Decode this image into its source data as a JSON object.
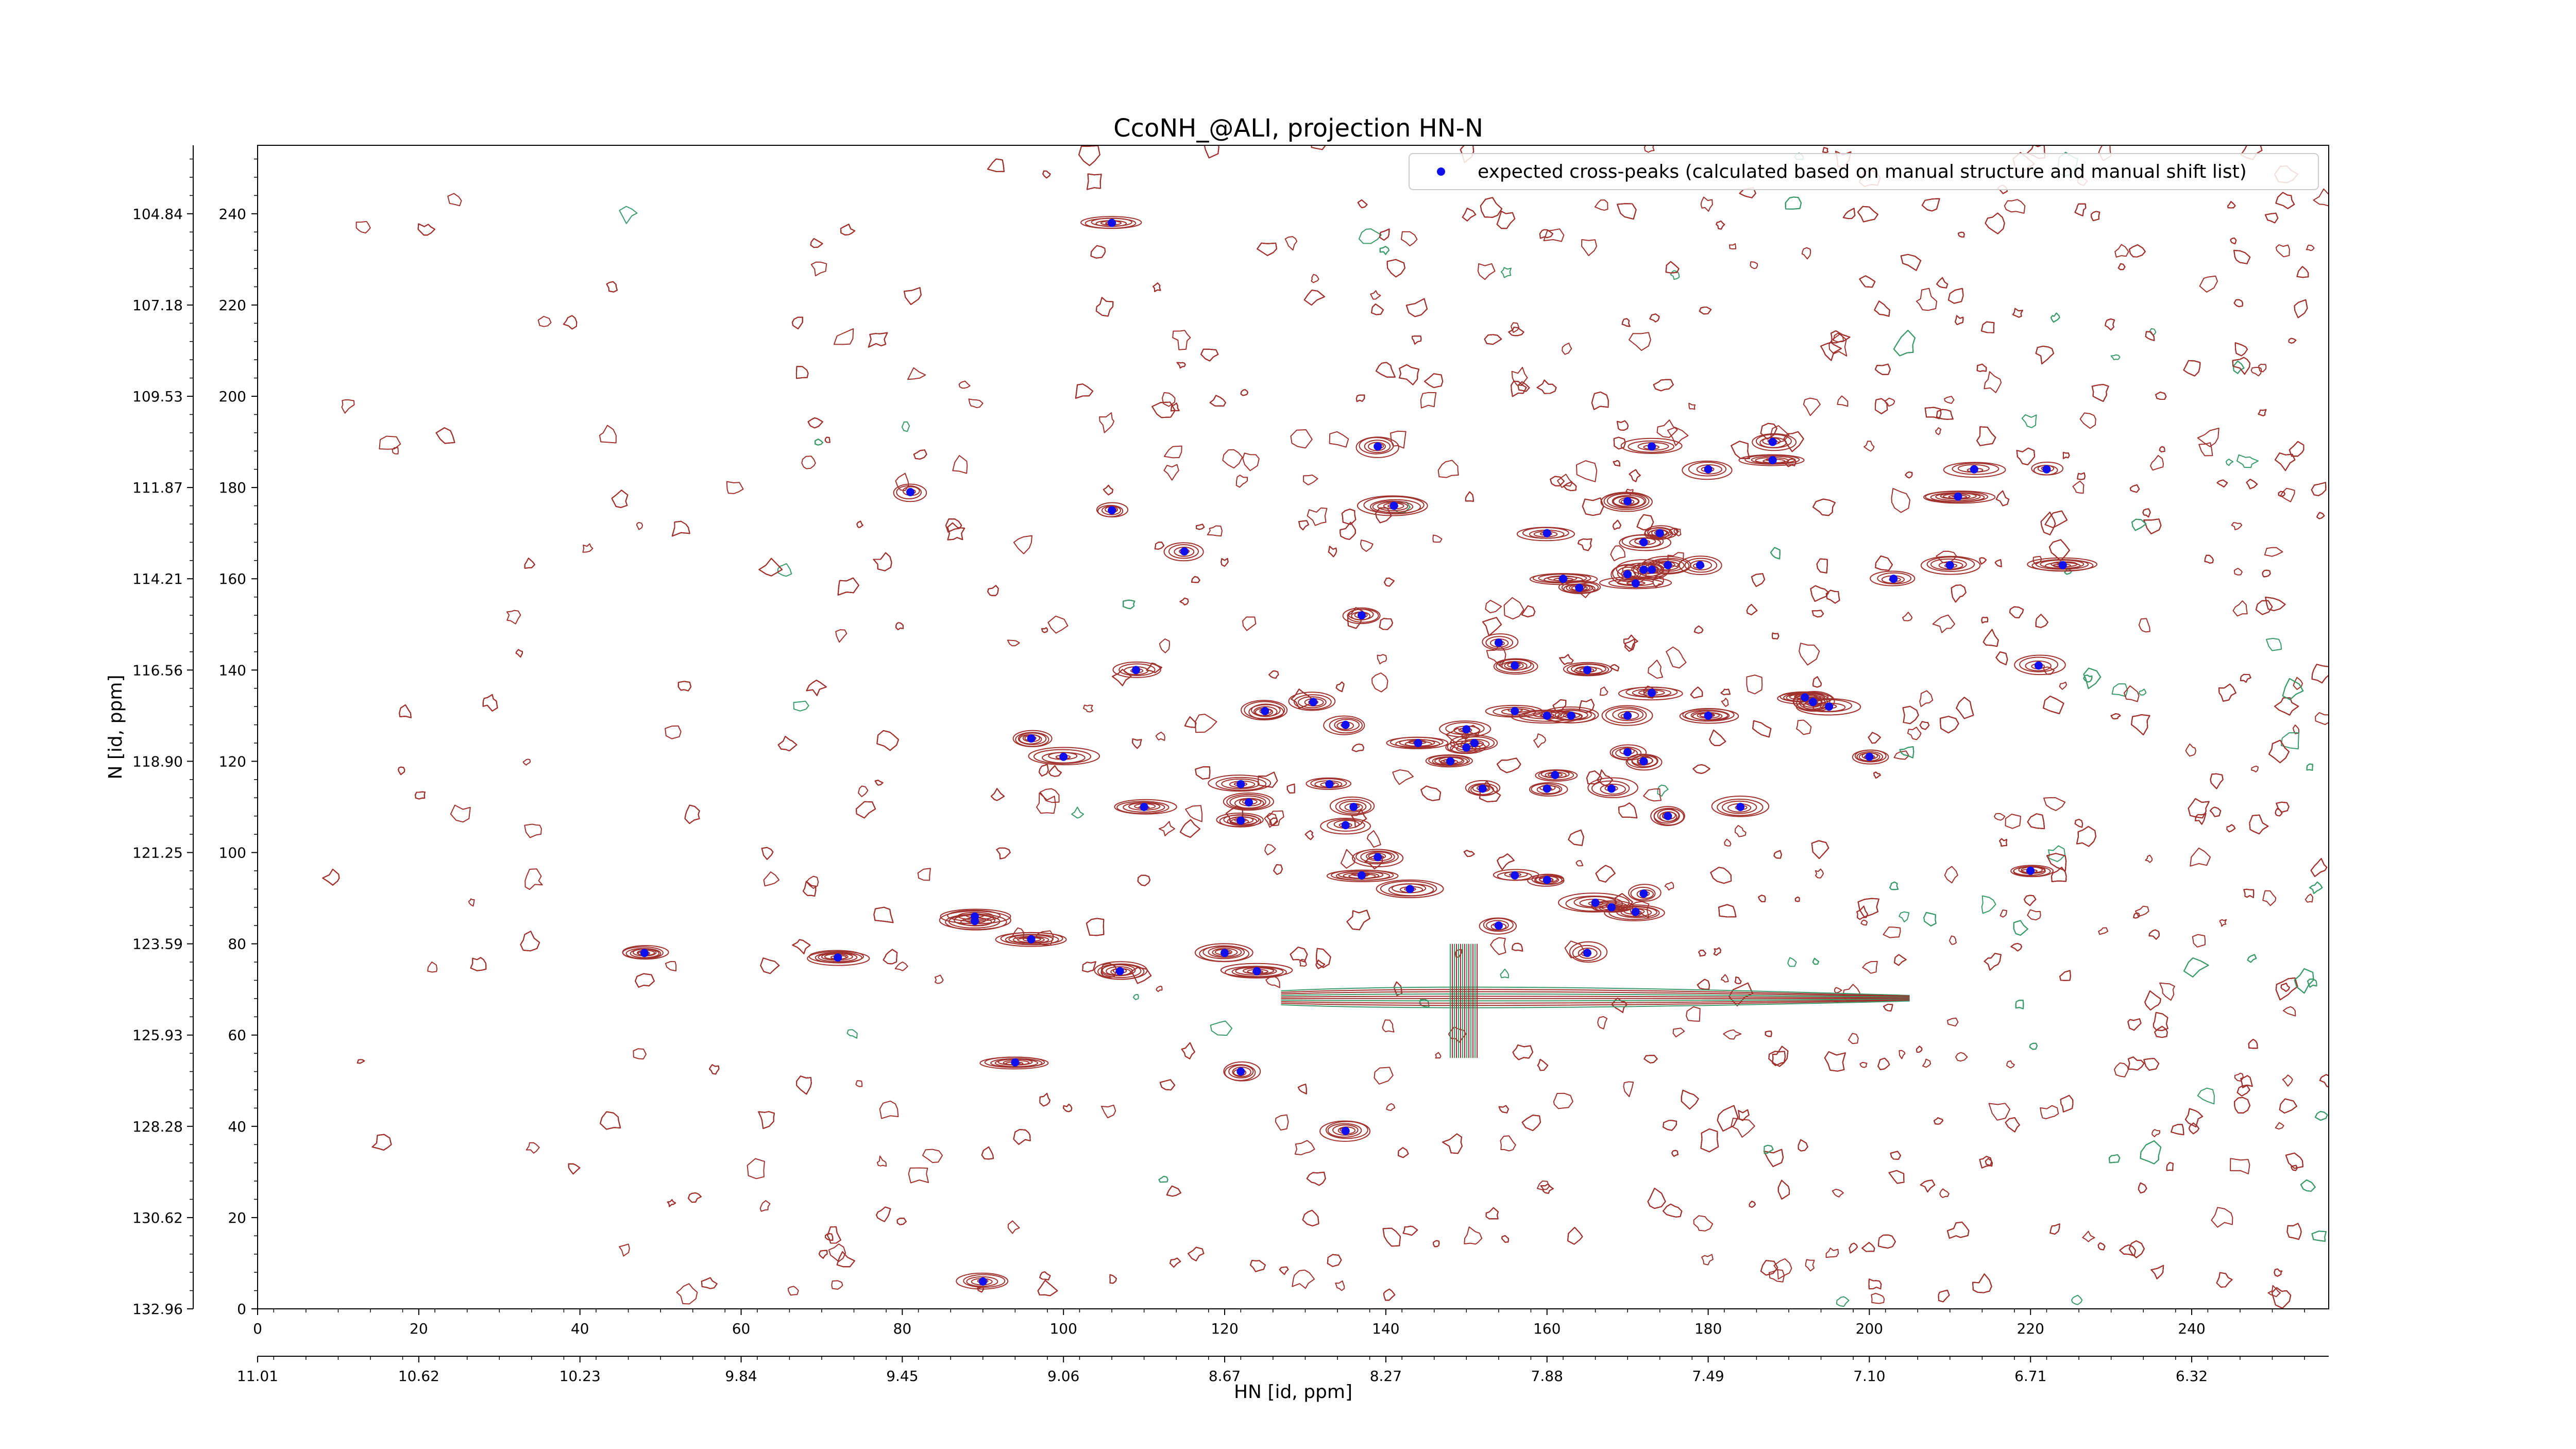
{
  "chart_data": {
    "type": "scatter",
    "title": "CcoNH_@ALI, projection HN-N",
    "xlabel": "HN [id, ppm]",
    "ylabel": "N [id, ppm]",
    "xlim": [
      0,
      257
    ],
    "ylim": [
      0,
      255
    ],
    "x_ticks": [
      0,
      20,
      40,
      60,
      80,
      100,
      120,
      140,
      160,
      180,
      200,
      220,
      240
    ],
    "y_ticks": [
      0,
      20,
      40,
      60,
      80,
      100,
      120,
      140,
      160,
      180,
      200,
      220,
      240
    ],
    "secondary_x_ticks": [
      "11.01",
      "10.62",
      "10.23",
      "9.84",
      "9.45",
      "9.06",
      "8.67",
      "8.27",
      "7.88",
      "7.49",
      "7.10",
      "6.71",
      "6.32"
    ],
    "secondary_y_ticks": [
      "132.96",
      "130.62",
      "128.28",
      "125.93",
      "123.59",
      "121.25",
      "118.90",
      "116.56",
      "114.21",
      "111.87",
      "109.53",
      "107.18",
      "104.84"
    ],
    "legend": {
      "placement": "top-right",
      "label": "expected cross-peaks (calculated based on manual structure and manual shift list)"
    },
    "contour_colors": {
      "positive": "#a0312d",
      "negative": "#3a9a6a"
    },
    "marker_color": "#1010ee",
    "series": [
      {
        "name": "expected cross-peaks (calculated based on manual structure and manual shift list)",
        "points": [
          [
            106,
            238
          ],
          [
            81,
            179
          ],
          [
            106,
            175
          ],
          [
            115,
            166
          ],
          [
            139,
            189
          ],
          [
            141,
            176
          ],
          [
            137,
            152
          ],
          [
            109,
            140
          ],
          [
            125,
            131
          ],
          [
            131,
            133
          ],
          [
            135,
            128
          ],
          [
            144,
            124
          ],
          [
            96,
            125
          ],
          [
            100,
            121
          ],
          [
            110,
            110
          ],
          [
            122,
            115
          ],
          [
            123,
            111
          ],
          [
            122,
            107
          ],
          [
            133,
            115
          ],
          [
            136,
            110
          ],
          [
            135,
            106
          ],
          [
            139,
            99
          ],
          [
            137,
            95
          ],
          [
            143,
            92
          ],
          [
            89,
            86
          ],
          [
            89,
            85
          ],
          [
            96,
            81
          ],
          [
            48,
            78
          ],
          [
            72,
            77
          ],
          [
            107,
            74
          ],
          [
            120,
            78
          ],
          [
            124,
            74
          ],
          [
            122,
            52
          ],
          [
            94,
            54
          ],
          [
            90,
            6
          ],
          [
            135,
            39
          ],
          [
            148,
            120
          ],
          [
            150,
            127
          ],
          [
            151,
            124
          ],
          [
            150,
            123
          ],
          [
            152,
            114
          ],
          [
            154,
            146
          ],
          [
            156,
            141
          ],
          [
            156,
            131
          ],
          [
            160,
            170
          ],
          [
            160,
            130
          ],
          [
            162,
            160
          ],
          [
            164,
            158
          ],
          [
            165,
            140
          ],
          [
            163,
            130
          ],
          [
            161,
            117
          ],
          [
            160,
            114
          ],
          [
            156,
            95
          ],
          [
            154,
            84
          ],
          [
            160,
            94
          ],
          [
            165,
            78
          ],
          [
            166,
            89
          ],
          [
            168,
            88
          ],
          [
            171,
            87
          ],
          [
            172,
            91
          ],
          [
            170,
            122
          ],
          [
            172,
            120
          ],
          [
            175,
            108
          ],
          [
            168,
            114
          ],
          [
            170,
            130
          ],
          [
            173,
            135
          ],
          [
            170,
            161
          ],
          [
            172,
            162
          ],
          [
            173,
            162
          ],
          [
            171,
            159
          ],
          [
            172,
            168
          ],
          [
            174,
            170
          ],
          [
            173,
            189
          ],
          [
            170,
            177
          ],
          [
            175,
            163
          ],
          [
            179,
            163
          ],
          [
            180,
            184
          ],
          [
            180,
            130
          ],
          [
            184,
            110
          ],
          [
            188,
            190
          ],
          [
            188,
            186
          ],
          [
            192,
            134
          ],
          [
            193,
            133
          ],
          [
            195,
            132
          ],
          [
            200,
            121
          ],
          [
            203,
            160
          ],
          [
            210,
            163
          ],
          [
            211,
            178
          ],
          [
            213,
            184
          ],
          [
            221,
            141
          ],
          [
            220,
            96
          ],
          [
            222,
            184
          ],
          [
            224,
            163
          ]
        ]
      }
    ]
  }
}
